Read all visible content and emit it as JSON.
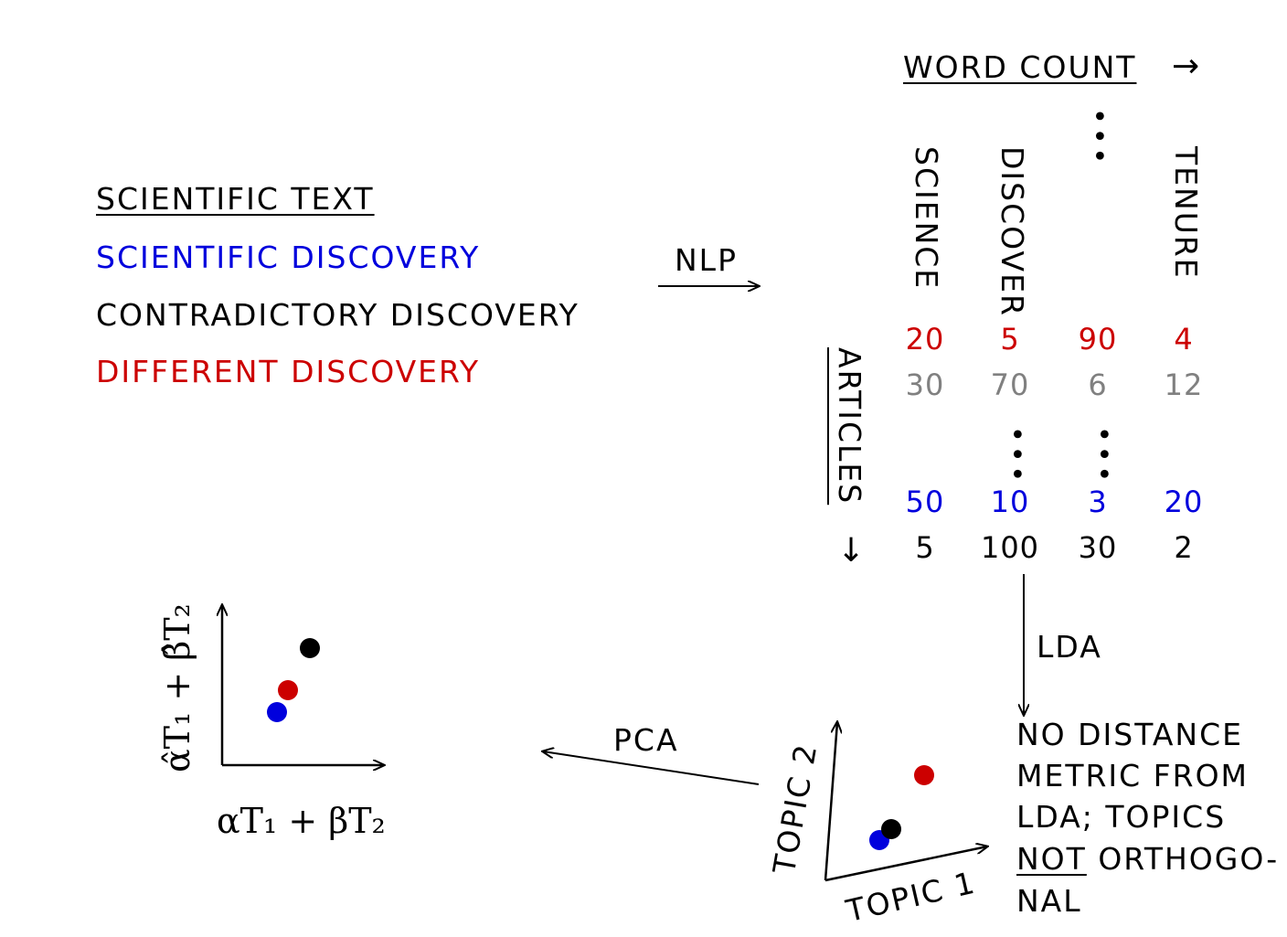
{
  "colors": {
    "red": "#cc0000",
    "blue": "#0000dd",
    "gray": "#808080",
    "black": "#000000"
  },
  "legend": {
    "title": "SCIENTIFIC TEXT",
    "items": [
      {
        "label": "SCIENTIFIC DISCOVERY",
        "color": "blue"
      },
      {
        "label": "CONTRADICTORY DISCOVERY",
        "color": "black"
      },
      {
        "label": "DIFFERENT DISCOVERY",
        "color": "red"
      }
    ]
  },
  "arrows": {
    "nlp": "NLP",
    "lda": "LDA",
    "pca": "PCA"
  },
  "matrix": {
    "word_count_label": "WORD COUNT",
    "word_count_arrow": "→",
    "articles_label": "ARTICLES",
    "articles_arrow": "↓",
    "columns": [
      "SCIENCE",
      "DISCOVER",
      "TENURE"
    ],
    "rows": [
      {
        "color": "red",
        "values": [
          "20",
          "5",
          "90",
          "4"
        ]
      },
      {
        "color": "gray",
        "values": [
          "30",
          "70",
          "6",
          "12"
        ]
      },
      {
        "color": "blue",
        "values": [
          "50",
          "10",
          "3",
          "20"
        ]
      },
      {
        "color": "black",
        "values": [
          "5",
          "100",
          "30",
          "2"
        ]
      }
    ]
  },
  "lda_plot": {
    "x_label": "TOPIC 1",
    "y_label": "TOPIC 2"
  },
  "note": {
    "line1": "NO DISTANCE",
    "line2": "METRIC FROM",
    "line3": "LDA; TOPICS",
    "line4_underlined": "NOT",
    "line4_rest": " ORTHOGO-",
    "line5": "NAL"
  },
  "pca_plot": {
    "x_label": "αT₁ + βT₂",
    "y_label": "α̂T₁ + β̂T₂"
  }
}
